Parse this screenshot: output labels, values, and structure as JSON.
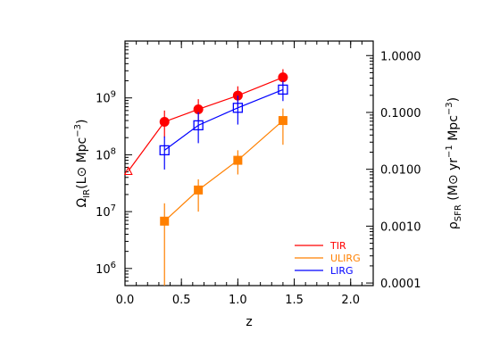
{
  "chart_data": {
    "type": "scatter",
    "xlabel": "z",
    "ylabel_left": "Ω_IR(L⊙ Mpc^-3)",
    "ylabel_right": "ρ_SFR (M⊙ yr^-1 Mpc^-3)",
    "xlim": [
      0.0,
      2.2
    ],
    "ylim_left": [
      500000,
      10000000000
    ],
    "yscale_left": "log",
    "ylim_right": [
      9e-05,
      1.8
    ],
    "yscale_right": "log",
    "x_ticks": [
      "0.0",
      "0.5",
      "1.0",
      "1.5",
      "2.0"
    ],
    "y_left_ticks": [
      {
        "value": 1000000,
        "mantissa": "10",
        "exp": "6"
      },
      {
        "value": 10000000,
        "mantissa": "10",
        "exp": "7"
      },
      {
        "value": 100000000,
        "mantissa": "10",
        "exp": "8"
      },
      {
        "value": 1000000000,
        "mantissa": "10",
        "exp": "9"
      }
    ],
    "y_right_ticks": [
      {
        "value": 0.0001,
        "label": "0.0001"
      },
      {
        "value": 0.001,
        "label": "0.0010"
      },
      {
        "value": 0.01,
        "label": "0.0100"
      },
      {
        "value": 0.1,
        "label": "0.1000"
      },
      {
        "value": 1.0,
        "label": "1.0000"
      }
    ],
    "legend_position": "bottom-right",
    "series": [
      {
        "name": "TIR",
        "color": "#ff0000",
        "marker": "filled-circle",
        "x": [
          0.35,
          0.65,
          1.0,
          1.4
        ],
        "y": [
          380000000,
          630000000,
          1100000000,
          2300000000
        ],
        "y_err_low": [
          200000000,
          380000000,
          700000000,
          1600000000
        ],
        "y_err_high": [
          600000000,
          950000000,
          1600000000,
          3200000000
        ]
      },
      {
        "name": "ULIRG",
        "color": "#ff8000",
        "marker": "filled-square",
        "x": [
          0.35,
          0.65,
          1.0,
          1.4
        ],
        "y": [
          6800000,
          24000000,
          80000000,
          400000000
        ],
        "y_err_low": [
          500000,
          10000000,
          45000000,
          150000000
        ],
        "y_err_high": [
          14000000,
          37000000,
          120000000,
          650000000
        ]
      },
      {
        "name": "LIRG",
        "color": "#0000ff",
        "marker": "open-square",
        "x": [
          0.35,
          0.65,
          1.0,
          1.4
        ],
        "y": [
          120000000,
          330000000,
          670000000,
          1400000000
        ],
        "y_err_low": [
          55000000,
          160000000,
          340000000,
          880000000
        ],
        "y_err_high": [
          210000000,
          560000000,
          1100000000,
          2000000000
        ]
      }
    ],
    "local_point": {
      "x": 0.03,
      "y": 52000000,
      "color": "#ff0000",
      "marker": "open-triangle"
    }
  }
}
